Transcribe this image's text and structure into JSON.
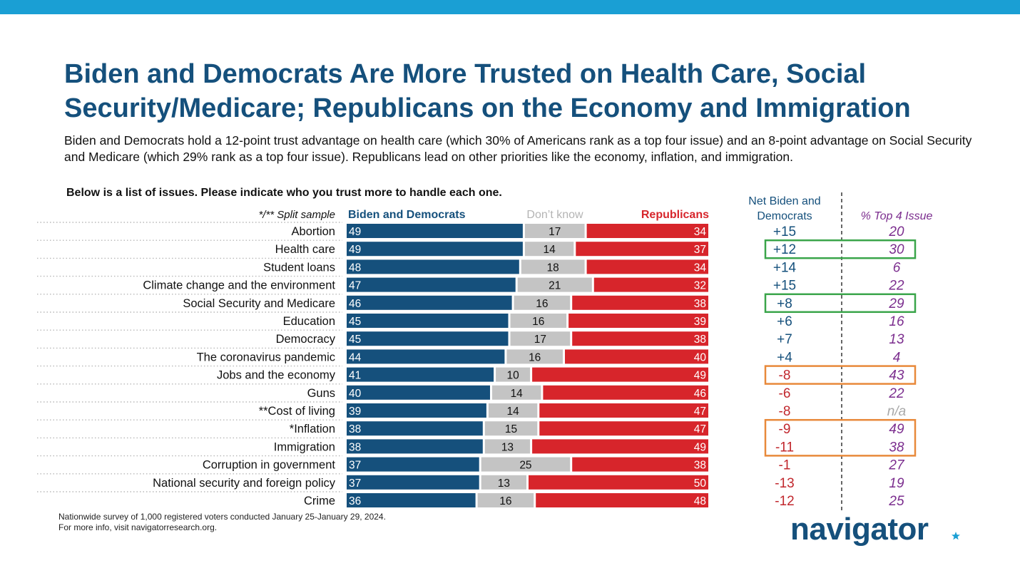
{
  "title": "Biden and Democrats Are More Trusted on Health Care, Social Security/Medicare; Republicans on the Economy and Immigration",
  "subtitle": "Biden and Democrats hold a 12-point trust advantage on health care (which 30% of Americans rank as a top four issue) and an 8-point advantage on Social Security and Medicare (which 29% rank as a top four issue). Republicans lead on other priorities like the economy, inflation, and immigration.",
  "question": "Below is a list of issues. Please indicate who you trust more to handle each one.",
  "split_sample_note": "*/** Split sample",
  "footnote": {
    "line1": "Nationwide survey of 1,000 registered voters conducted January 25-January 29, 2024.",
    "line2": "For more info, visit navigatorresearch.org."
  },
  "logo": "navigator",
  "colors": {
    "top_bar": "#1a9fd4",
    "democrats": "#15507c",
    "dont_know": "#c4c4c4",
    "republicans": "#d7252b",
    "net_positive": "#15507c",
    "net_negative": "#c1272d",
    "top4": "#7b2d8e",
    "na": "#a8a8a8",
    "highlight_green": "#3aa54a",
    "highlight_orange": "#e8893a"
  },
  "chart_data": {
    "type": "bar",
    "stacked": true,
    "orientation": "horizontal",
    "categories": [
      "Abortion",
      "Health care",
      "Student loans",
      "Climate change and the environment",
      "Social Security and Medicare",
      "Education",
      "Democracy",
      "The coronavirus pandemic",
      "Jobs and the economy",
      "Guns",
      "**Cost of living",
      "*Inflation",
      "Immigration",
      "Corruption in government",
      "National security and foreign policy",
      "Crime"
    ],
    "series": [
      {
        "name": "Biden and Democrats",
        "values": [
          49,
          49,
          48,
          47,
          46,
          45,
          45,
          44,
          41,
          40,
          39,
          38,
          38,
          37,
          37,
          36
        ]
      },
      {
        "name": "Don’t know",
        "values": [
          17,
          14,
          18,
          21,
          16,
          16,
          17,
          16,
          10,
          14,
          14,
          15,
          13,
          25,
          13,
          16
        ]
      },
      {
        "name": "Republicans",
        "values": [
          34,
          37,
          34,
          32,
          38,
          39,
          38,
          40,
          49,
          46,
          47,
          47,
          49,
          38,
          50,
          48
        ]
      }
    ],
    "net_header": "Net Biden and Democrats",
    "net_header_lines": [
      "Net Biden and",
      "Democrats"
    ],
    "net": [
      "+15",
      "+12",
      "+14",
      "+15",
      "+8",
      "+6",
      "+7",
      "+4",
      "-8",
      "-6",
      "-8",
      "-9",
      "-11",
      "-1",
      "-13",
      "-12"
    ],
    "top4_header": "% Top 4 Issue",
    "top4": [
      "20",
      "30",
      "6",
      "22",
      "29",
      "16",
      "13",
      "4",
      "43",
      "22",
      "n/a",
      "49",
      "38",
      "27",
      "19",
      "25"
    ],
    "highlights": [
      {
        "rows": [
          1,
          1
        ],
        "color": "green"
      },
      {
        "rows": [
          4,
          4
        ],
        "color": "green"
      },
      {
        "rows": [
          8,
          8
        ],
        "color": "orange"
      },
      {
        "rows": [
          11,
          12
        ],
        "color": "orange"
      }
    ]
  }
}
